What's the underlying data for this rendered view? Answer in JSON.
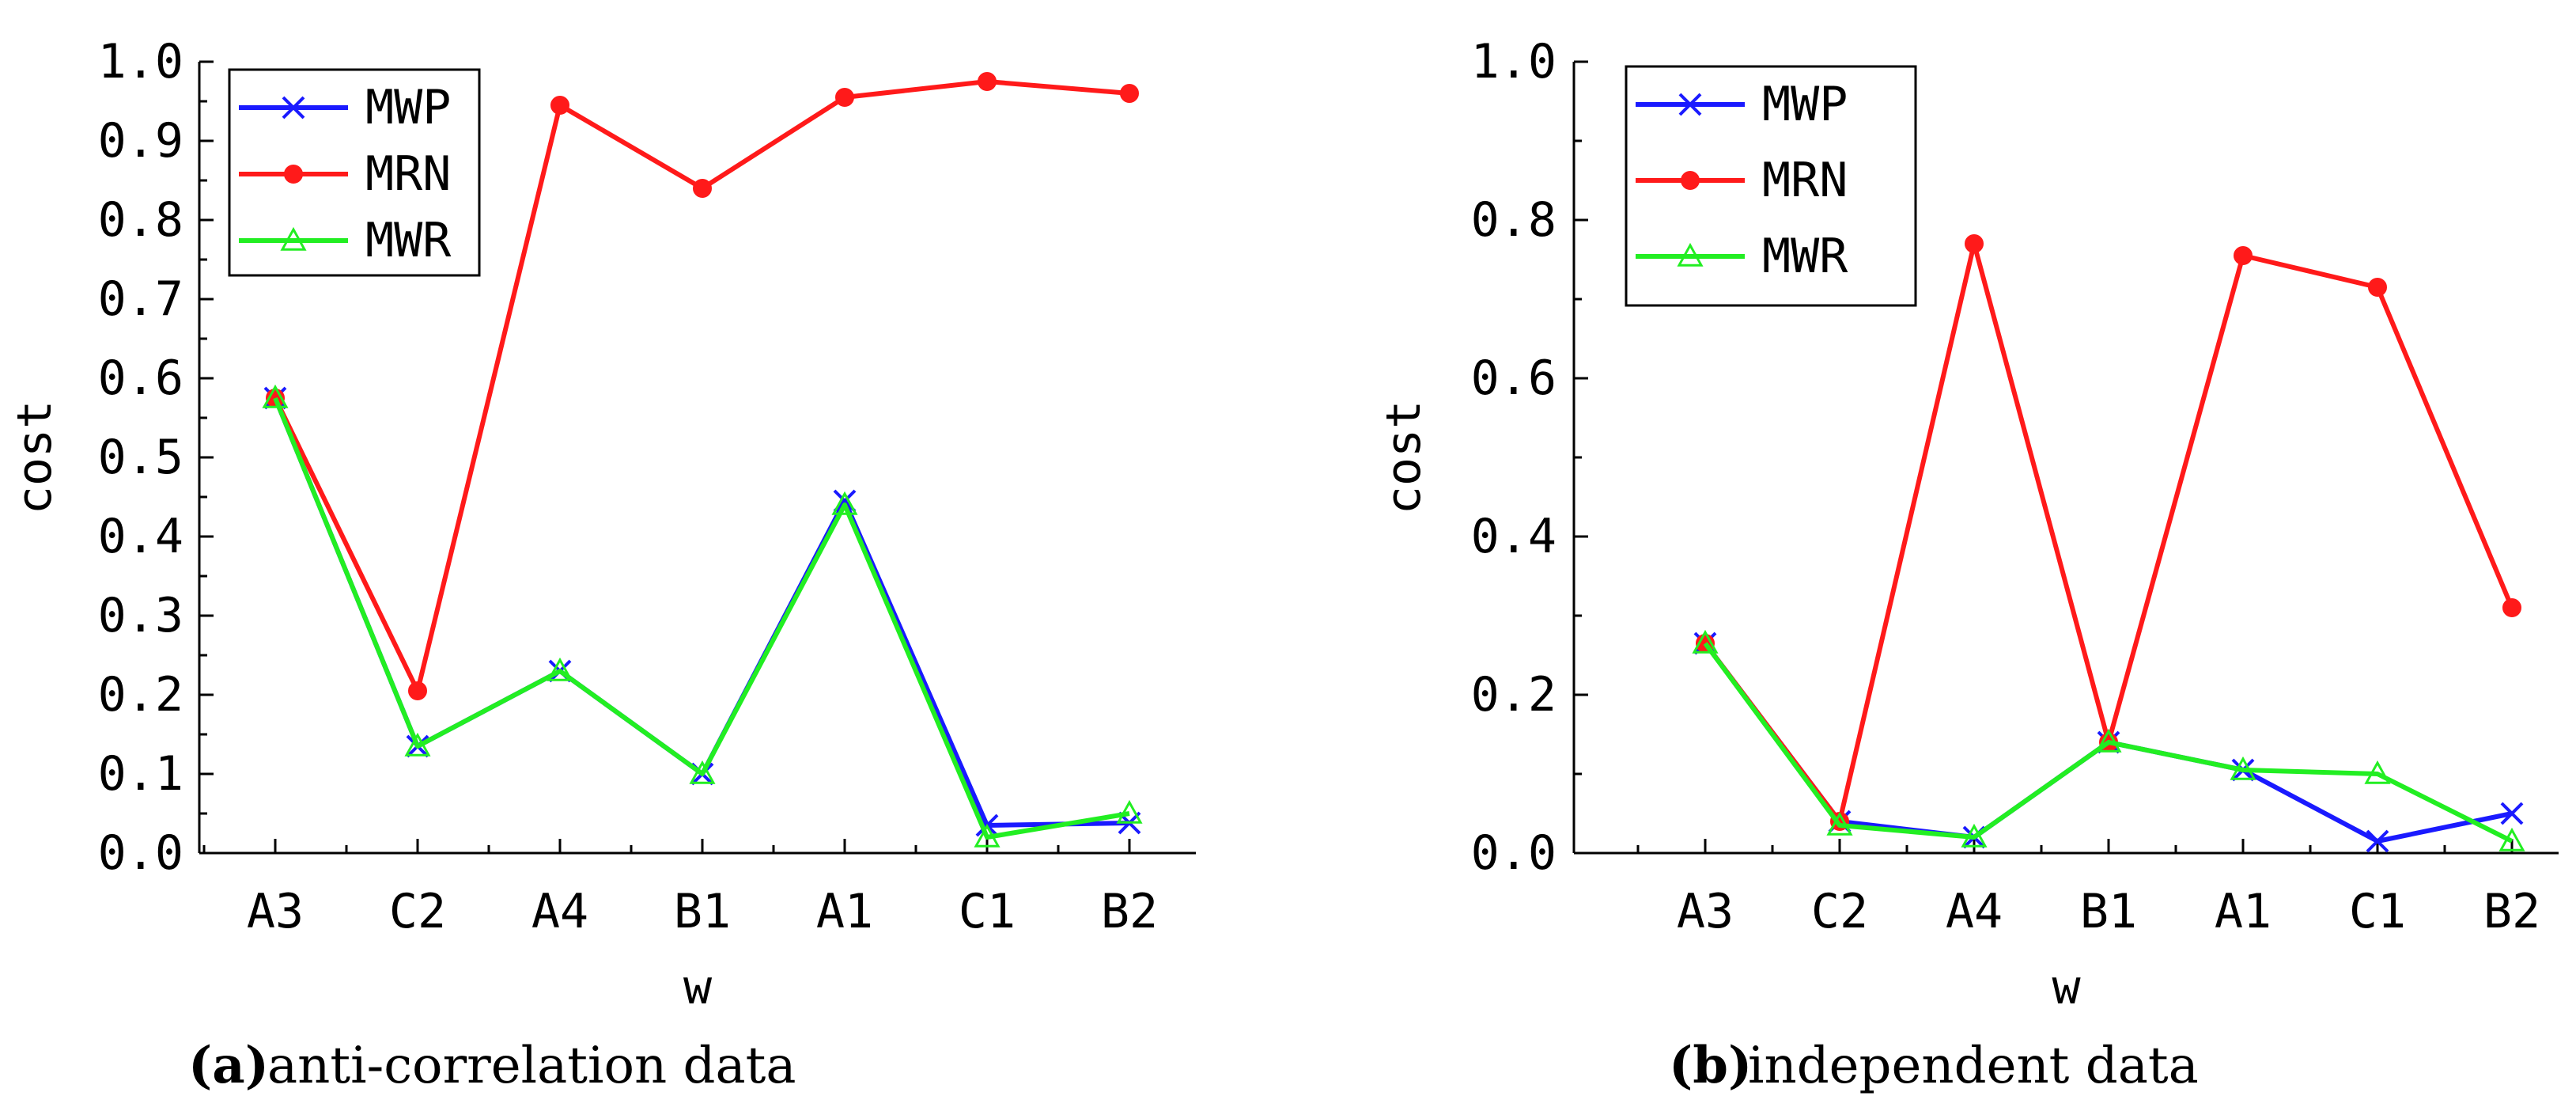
{
  "colors": {
    "MWP": "#1a1aff",
    "MRN": "#ff1a1a",
    "MWR": "#22ee22",
    "axis": "#000000"
  },
  "chart_data": [
    {
      "type": "line",
      "panel": "a",
      "caption_letter": "(a)",
      "caption_text": "anti-correlation data",
      "xlabel": "w",
      "ylabel": "cost",
      "categories": [
        "A3",
        "C2",
        "A4",
        "B1",
        "A1",
        "C1",
        "B2"
      ],
      "ylim": [
        0.0,
        1.0
      ],
      "yticks": [
        "0.0",
        "0.1",
        "0.2",
        "0.3",
        "0.4",
        "0.5",
        "0.6",
        "0.7",
        "0.8",
        "0.9",
        "1.0"
      ],
      "legend_position": "top-left",
      "series": [
        {
          "name": "MWP",
          "marker": "x",
          "values": [
            0.575,
            0.135,
            0.23,
            0.1,
            0.445,
            0.035,
            0.038
          ]
        },
        {
          "name": "MRN",
          "marker": "circle",
          "values": [
            0.575,
            0.205,
            0.945,
            0.84,
            0.955,
            0.975,
            0.96
          ]
        },
        {
          "name": "MWR",
          "marker": "triangle",
          "values": [
            0.575,
            0.135,
            0.23,
            0.1,
            0.44,
            0.02,
            0.05
          ]
        }
      ]
    },
    {
      "type": "line",
      "panel": "b",
      "caption_letter": "(b)",
      "caption_text": "independent data",
      "xlabel": "w",
      "ylabel": "cost",
      "categories": [
        "A3",
        "C2",
        "A4",
        "B1",
        "A1",
        "C1",
        "B2"
      ],
      "ylim": [
        0.0,
        1.0
      ],
      "yticks": [
        "0.0",
        "0.2",
        "0.4",
        "0.6",
        "0.8",
        "1.0"
      ],
      "legend_position": "top-left",
      "series": [
        {
          "name": "MWP",
          "marker": "x",
          "values": [
            0.265,
            0.04,
            0.02,
            0.14,
            0.105,
            0.015,
            0.05
          ]
        },
        {
          "name": "MRN",
          "marker": "circle",
          "values": [
            0.265,
            0.04,
            0.77,
            0.14,
            0.755,
            0.715,
            0.31
          ]
        },
        {
          "name": "MWR",
          "marker": "triangle",
          "values": [
            0.265,
            0.035,
            0.02,
            0.14,
            0.105,
            0.1,
            0.015
          ]
        }
      ]
    }
  ]
}
